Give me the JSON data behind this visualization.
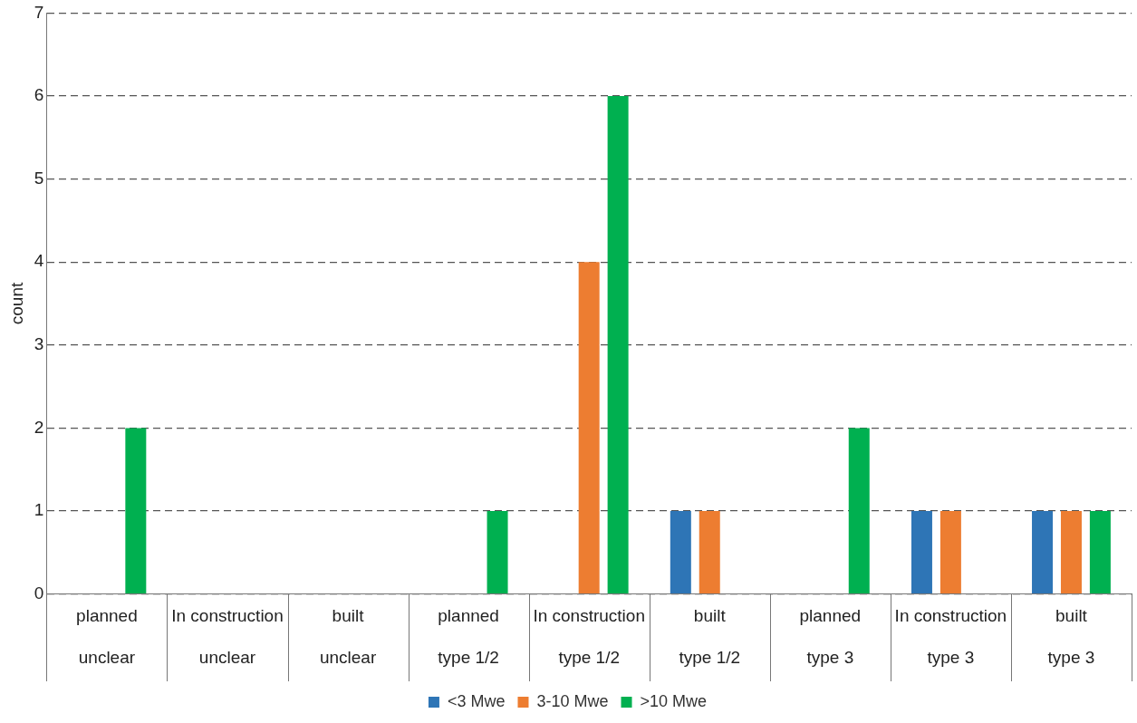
{
  "chart_data": {
    "type": "bar",
    "ylabel": "count",
    "categories": [
      "planned\nunclear",
      "In construction\nunclear",
      "built\nunclear",
      "planned\ntype 1/2",
      "In construction\ntype 1/2",
      "built\ntype 1/2",
      "planned\ntype 3",
      "In construction\ntype 3",
      "built\ntype 3"
    ],
    "series": [
      {
        "name": "<3 Mwe",
        "color": "#2e75b6",
        "values": [
          0,
          0,
          0,
          0,
          0,
          1,
          0,
          1,
          1
        ]
      },
      {
        "name": "3-10 Mwe",
        "color": "#ed7d31",
        "values": [
          0,
          0,
          0,
          0,
          4,
          1,
          0,
          1,
          1
        ]
      },
      {
        "name": ">10 Mwe",
        "color": "#00b050",
        "values": [
          2,
          0,
          0,
          1,
          6,
          0,
          2,
          0,
          1
        ]
      }
    ],
    "ylim": [
      0,
      7
    ],
    "yticks": [
      0,
      1,
      2,
      3,
      4,
      5,
      6,
      7
    ],
    "grid": "y",
    "legend": "bottom"
  }
}
